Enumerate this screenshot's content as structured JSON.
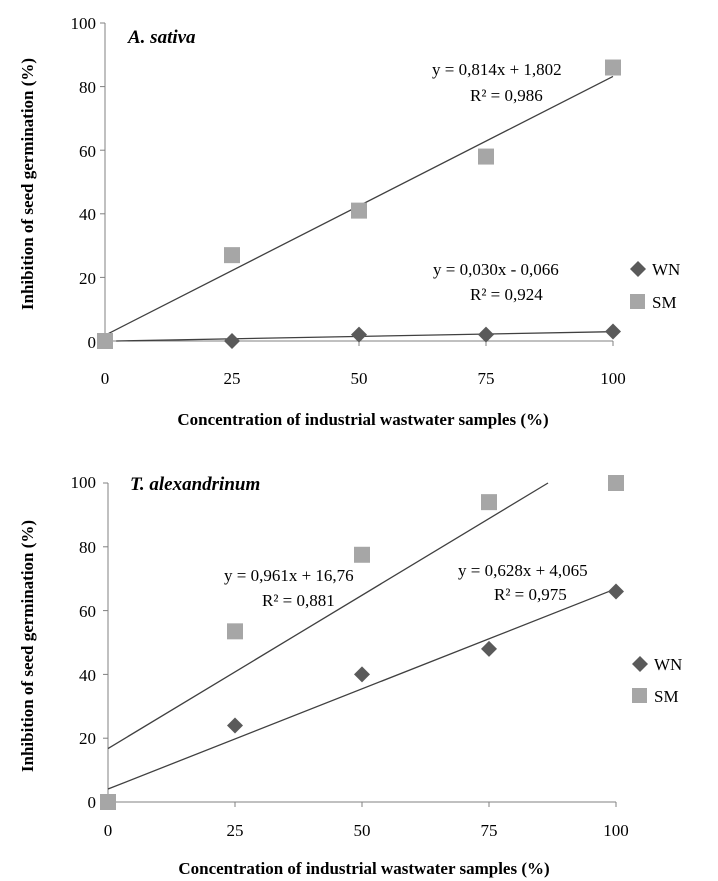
{
  "chart_data": [
    {
      "type": "scatter",
      "title": "A. sativa",
      "xlabel": "Concentration of industrial wastwater samples (%)",
      "ylabel": "Inhibition of seed germination (%)",
      "xticks": [
        "0",
        "25",
        "50",
        "75",
        "100"
      ],
      "yticks": [
        "0",
        "20",
        "40",
        "60",
        "80",
        "100"
      ],
      "xlim": [
        0,
        100
      ],
      "ylim": [
        0,
        100
      ],
      "categories": [
        0,
        25,
        50,
        75,
        100
      ],
      "series": [
        {
          "name": "WN",
          "marker": "diamond",
          "color": "#5a5a5a",
          "values": [
            0,
            0,
            2,
            2,
            3
          ],
          "trendline": {
            "slope": 0.03,
            "intercept": -0.066,
            "equation": "y = 0,030x - 0,066",
            "r2": "R² = 0,924"
          }
        },
        {
          "name": "SM",
          "marker": "square",
          "color": "#a6a6a6",
          "values": [
            0,
            27,
            41,
            58,
            86
          ],
          "trendline": {
            "slope": 0.814,
            "intercept": 1.802,
            "equation": "y = 0,814x + 1,802",
            "r2": "R² = 0,986"
          }
        }
      ],
      "legend": "right"
    },
    {
      "type": "scatter",
      "title": "T. alexandrinum",
      "xlabel": "Concentration of industrial wastwater samples (%)",
      "ylabel": "Inhibition of seed germination (%)",
      "xticks": [
        "0",
        "25",
        "50",
        "75",
        "100"
      ],
      "yticks": [
        "0",
        "20",
        "40",
        "60",
        "80",
        "100"
      ],
      "xlim": [
        0,
        100
      ],
      "ylim": [
        0,
        100
      ],
      "categories": [
        0,
        25,
        50,
        75,
        100
      ],
      "series": [
        {
          "name": "WN",
          "marker": "diamond",
          "color": "#5a5a5a",
          "values": [
            0,
            24,
            40,
            48,
            66
          ],
          "trendline": {
            "slope": 0.628,
            "intercept": 4.065,
            "equation": "y = 0,628x + 4,065",
            "r2": "R² = 0,975"
          }
        },
        {
          "name": "SM",
          "marker": "square",
          "color": "#a6a6a6",
          "values": [
            0,
            53.5,
            77.5,
            94,
            100
          ],
          "trendline": {
            "slope": 0.961,
            "intercept": 16.76,
            "equation": "y = 0,961x + 16,76",
            "r2": "R² = 0,881"
          }
        }
      ],
      "legend": "right"
    }
  ]
}
